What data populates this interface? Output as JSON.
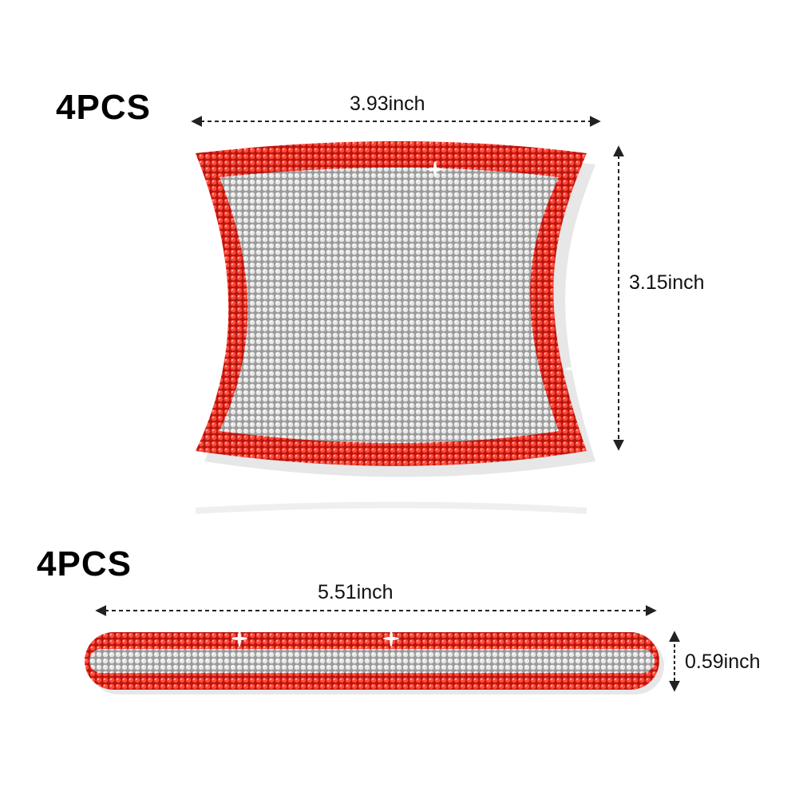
{
  "product_1": {
    "quantity_label": "4PCS",
    "width_label": "3.93inch",
    "height_label": "3.15inch"
  },
  "product_2": {
    "quantity_label": "4PCS",
    "width_label": "5.51inch",
    "height_label": "0.59inch"
  },
  "colors": {
    "border_rhinestone": "#e0281e",
    "center_rhinestone": "#d6d6d6",
    "background": "#ffffff",
    "arrow": "#222222"
  }
}
